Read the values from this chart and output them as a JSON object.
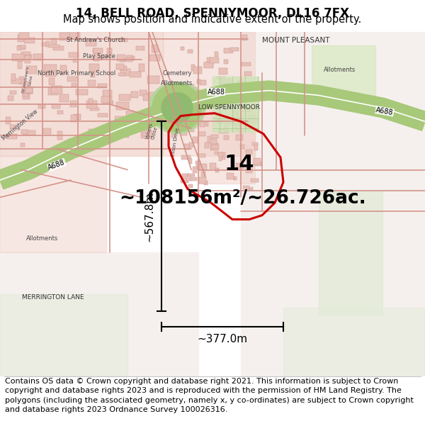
{
  "title": "14, BELL ROAD, SPENNYMOOR, DL16 7FX",
  "subtitle": "Map shows position and indicative extent of the property.",
  "area_text": "~108156m²/~26.726ac.",
  "label_14": "14",
  "dim_width": "~377.0m",
  "dim_height": "~567.8m",
  "footer": "Contains OS data © Crown copyright and database right 2021. This information is subject to Crown copyright and database rights 2023 and is reproduced with the permission of HM Land Registry. The polygons (including the associated geometry, namely x, y co-ordinates) are subject to Crown copyright and database rights 2023 Ordnance Survey 100026316.",
  "bg_color": "#ffffff",
  "map_bg": "#f7f0ee",
  "highlight_color": "#cc0000",
  "green_color": "#a8c87a",
  "green_dark": "#8ab85a",
  "title_fontsize": 12,
  "subtitle_fontsize": 10.5,
  "area_fontsize": 19,
  "label_fontsize": 22,
  "dim_fontsize": 11,
  "footer_fontsize": 8.0,
  "road_pink": "#e8b0a8",
  "road_outline": "#d08878",
  "urban_fill": "#f0d0c8",
  "white_area": "#f8f4f2",
  "light_green": "#d8e8c8"
}
